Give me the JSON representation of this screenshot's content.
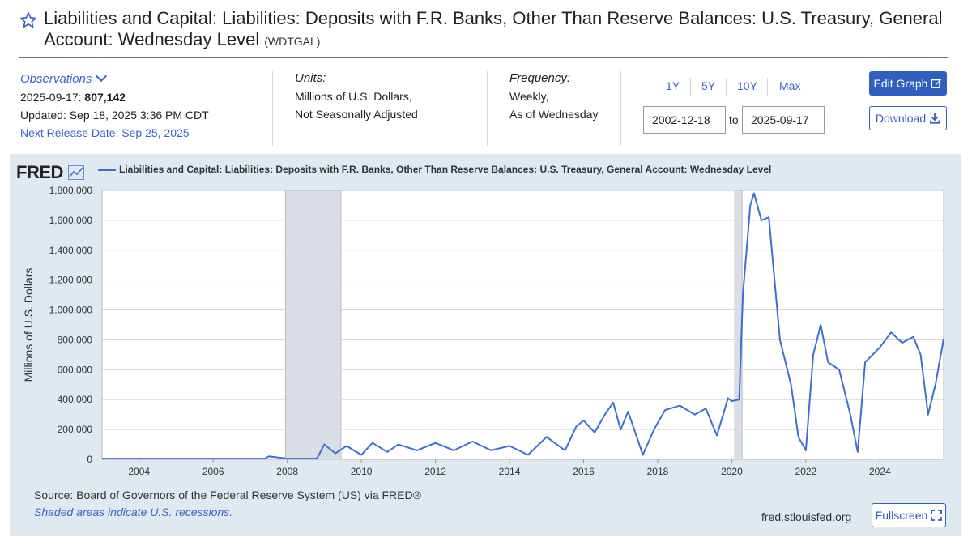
{
  "header": {
    "title": "Liabilities and Capital: Liabilities: Deposits with F.R. Banks, Other Than Reserve Balances: U.S. Treasury, General Account: Wednesday Level",
    "series_code": "(WDTGAL)"
  },
  "observations": {
    "label": "Observations",
    "date": "2025-09-17:",
    "value": "807,142",
    "updated": "Updated: Sep 18, 2025 3:36 PM CDT",
    "next_release": "Next Release Date: Sep 25, 2025"
  },
  "units": {
    "head": "Units:",
    "line1": "Millions of U.S. Dollars,",
    "line2": "Not Seasonally Adjusted"
  },
  "frequency": {
    "head": "Frequency:",
    "line1": "Weekly,",
    "line2": "As of Wednesday"
  },
  "range": {
    "buttons": [
      "1Y",
      "5Y",
      "10Y",
      "Max"
    ],
    "start": "2002-12-18",
    "to": "to",
    "end": "2025-09-17"
  },
  "actions": {
    "edit": "Edit Graph",
    "download": "Download",
    "fullscreen": "Fullscreen"
  },
  "graph": {
    "logo": "FRED",
    "source": "Source: Board of Governors of the Federal Reserve System (US) via FRED®",
    "shade_note": "Shaded areas indicate U.S. recessions.",
    "site": "fred.stlouisfed.org"
  },
  "colors": {
    "accent": "#2f5fbf",
    "link": "#3a63c8",
    "series": "#3b6fd6",
    "panel": "#e1e9f0",
    "recession": "#d9dde4"
  },
  "chart_data": {
    "type": "line",
    "title": "Liabilities and Capital: Liabilities: Deposits with F.R. Banks, Other Than Reserve Balances: U.S. Treasury, General Account: Wednesday Level",
    "ylabel": "Millions of U.S. Dollars",
    "xlim": [
      2003.0,
      2025.72
    ],
    "ylim": [
      0,
      1800000
    ],
    "yticks": [
      0,
      200000,
      400000,
      600000,
      800000,
      1000000,
      1200000,
      1400000,
      1600000,
      1800000
    ],
    "ytick_labels": [
      "0",
      "200,000",
      "400,000",
      "600,000",
      "800,000",
      "1,000,000",
      "1,200,000",
      "1,400,000",
      "1,600,000",
      "1,800,000"
    ],
    "xticks": [
      2004,
      2006,
      2008,
      2010,
      2012,
      2014,
      2016,
      2018,
      2020,
      2022,
      2024
    ],
    "recessions": [
      [
        2007.95,
        2009.45
      ],
      [
        2020.08,
        2020.28
      ]
    ],
    "series": [
      {
        "name": "WDTGAL",
        "x": [
          2003.0,
          2004.0,
          2005.0,
          2006.0,
          2007.0,
          2007.4,
          2007.5,
          2008.0,
          2008.8,
          2009.0,
          2009.3,
          2009.6,
          2010.0,
          2010.3,
          2010.7,
          2011.0,
          2011.5,
          2012.0,
          2012.5,
          2013.0,
          2013.5,
          2014.0,
          2014.5,
          2015.0,
          2015.5,
          2015.8,
          2016.0,
          2016.3,
          2016.6,
          2016.8,
          2017.0,
          2017.2,
          2017.6,
          2017.9,
          2018.2,
          2018.6,
          2019.0,
          2019.3,
          2019.6,
          2019.9,
          2020.0,
          2020.2,
          2020.3,
          2020.5,
          2020.6,
          2020.8,
          2021.0,
          2021.3,
          2021.6,
          2021.8,
          2022.0,
          2022.2,
          2022.4,
          2022.6,
          2022.9,
          2023.2,
          2023.4,
          2023.6,
          2023.8,
          2024.0,
          2024.3,
          2024.6,
          2024.9,
          2025.1,
          2025.3,
          2025.5,
          2025.72
        ],
        "values": [
          5000,
          5000,
          5000,
          5000,
          5000,
          5000,
          20000,
          5000,
          5000,
          100000,
          40000,
          90000,
          30000,
          110000,
          50000,
          100000,
          60000,
          110000,
          60000,
          120000,
          60000,
          90000,
          30000,
          150000,
          60000,
          220000,
          260000,
          180000,
          310000,
          380000,
          200000,
          320000,
          30000,
          200000,
          330000,
          360000,
          300000,
          340000,
          160000,
          410000,
          390000,
          400000,
          1100000,
          1700000,
          1780000,
          1600000,
          1620000,
          800000,
          500000,
          150000,
          60000,
          700000,
          900000,
          650000,
          600000,
          300000,
          50000,
          650000,
          700000,
          750000,
          850000,
          780000,
          820000,
          700000,
          300000,
          500000,
          807142
        ]
      }
    ]
  }
}
